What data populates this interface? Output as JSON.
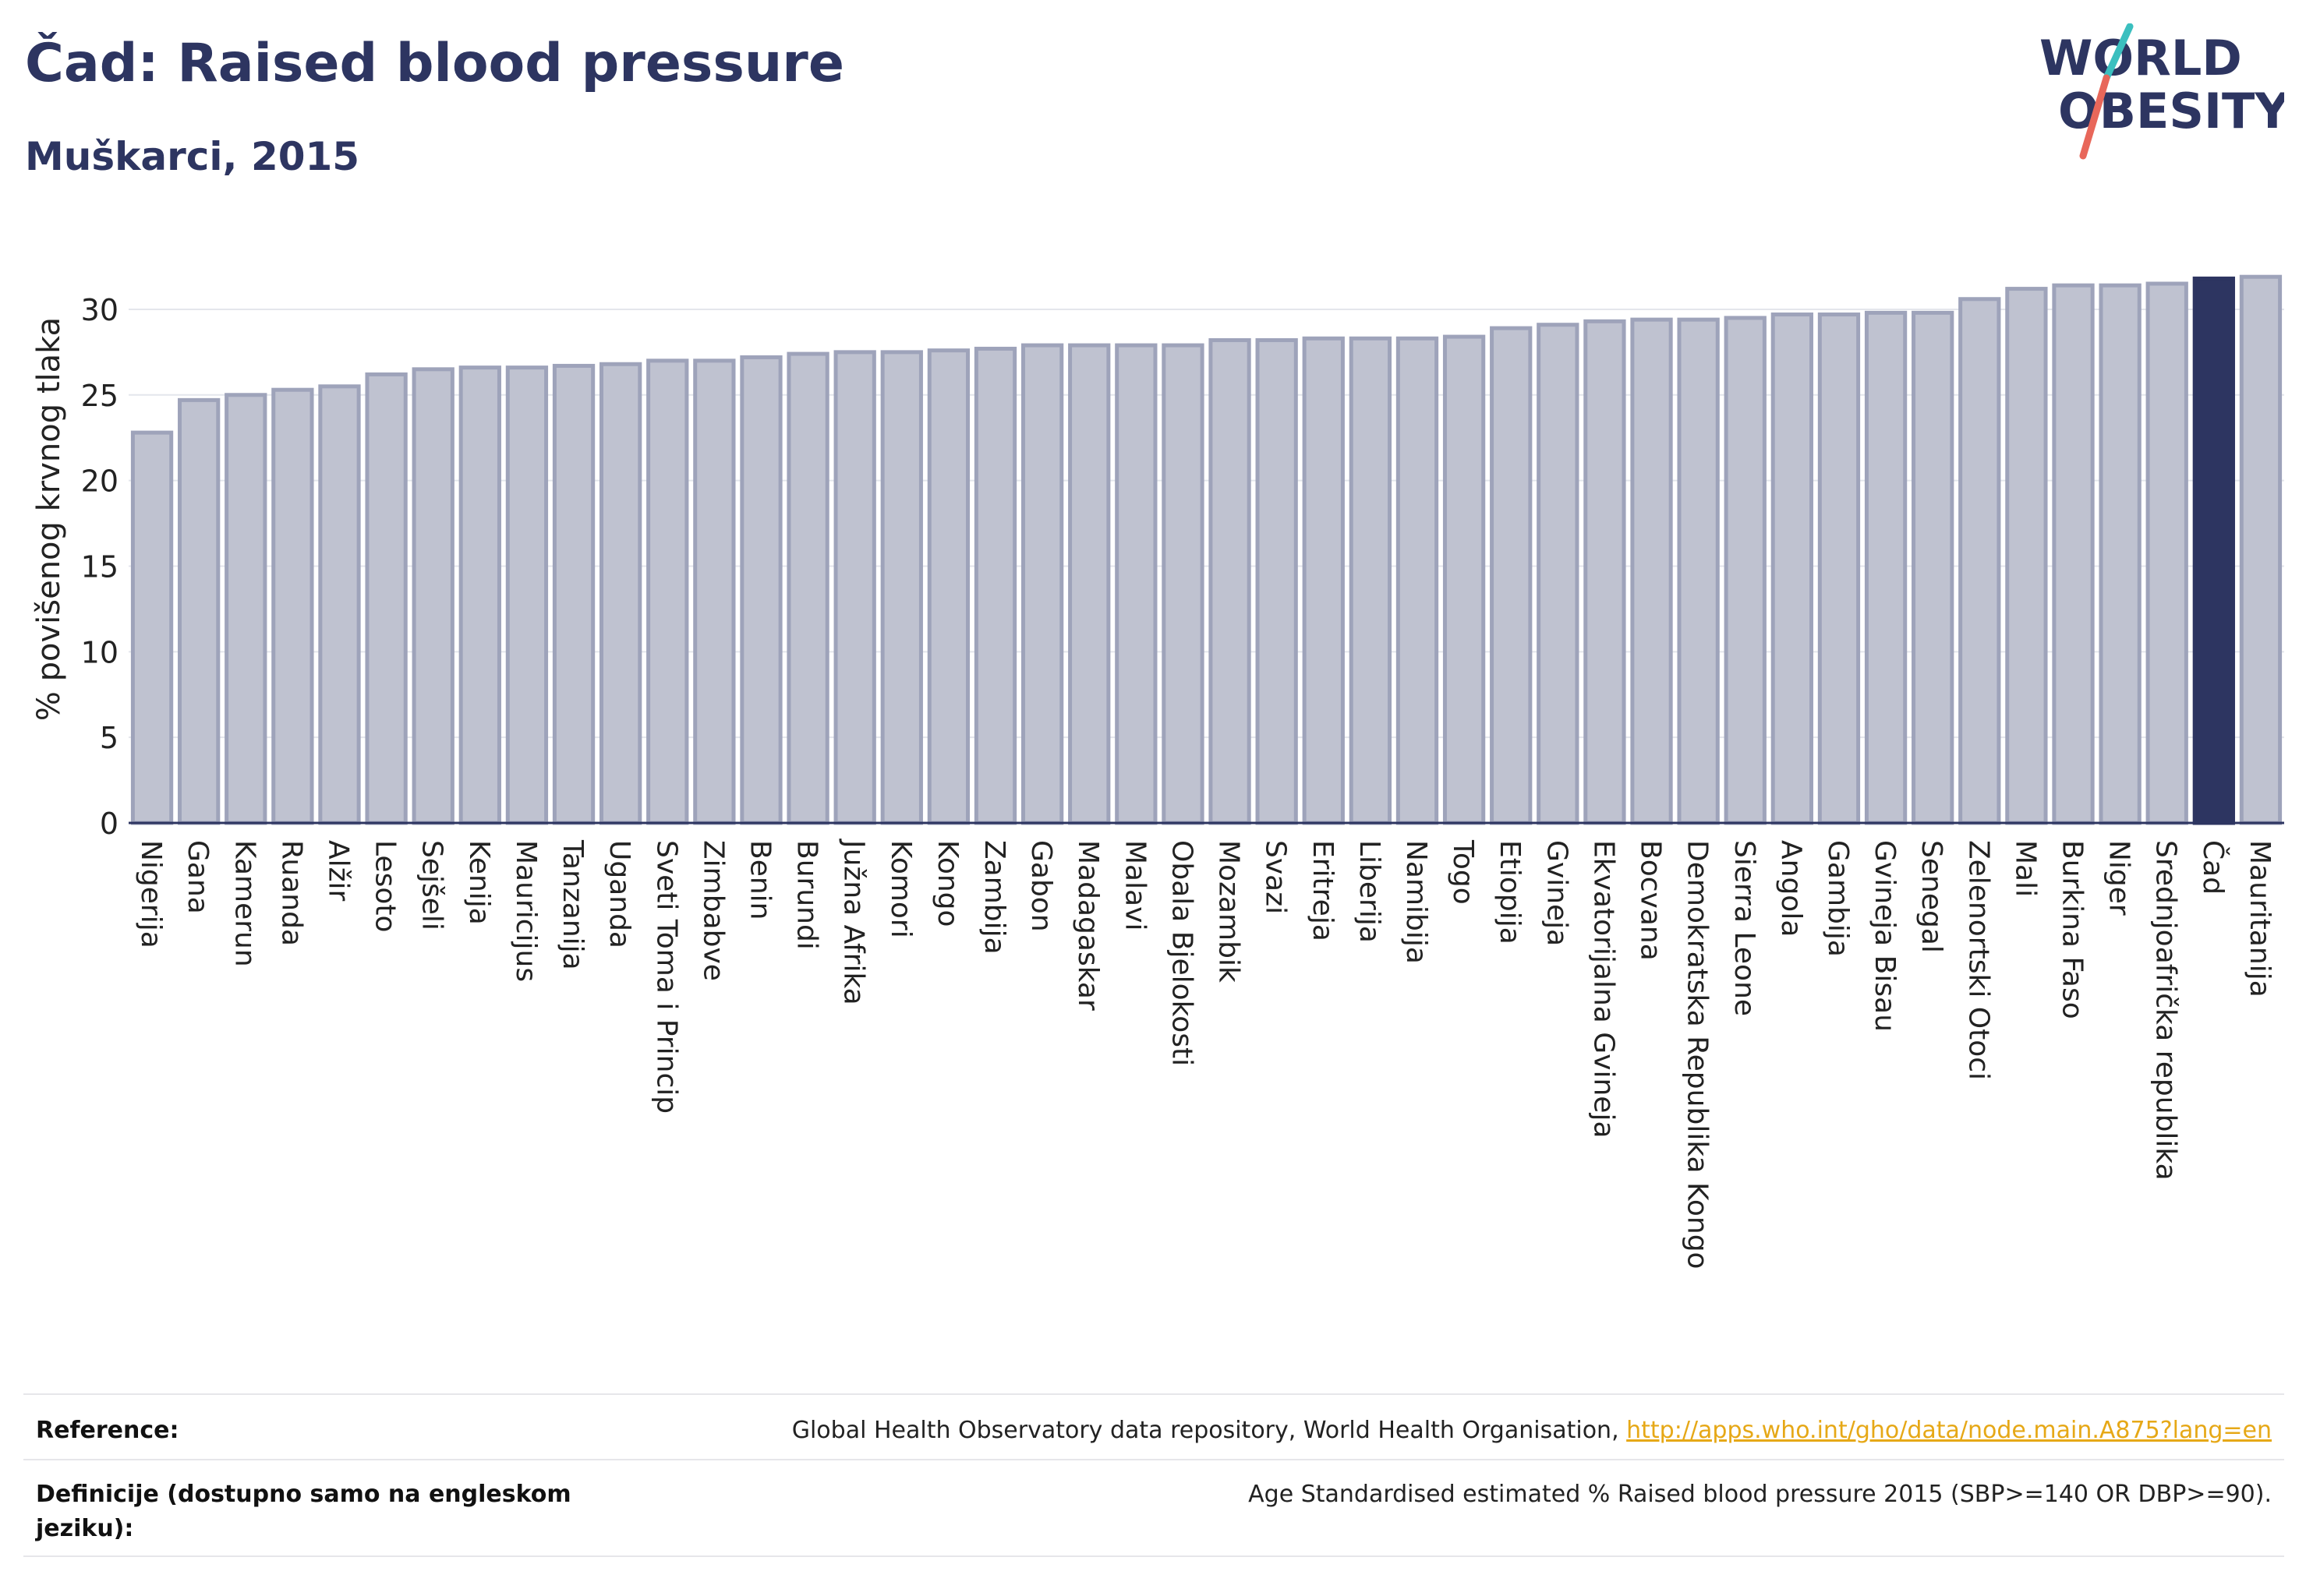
{
  "header": {
    "title": "Čad: Raised blood pressure",
    "subtitle": "Muškarci, 2015"
  },
  "logo": {
    "line1": "WORLD",
    "line2": "OBESITY",
    "colors": {
      "text": "#2d3561",
      "slash_teal": "#3bbfbf",
      "slash_red": "#e8675a"
    }
  },
  "colors": {
    "bar_fill": "#bfc2d0",
    "bar_stroke": "#9ea3ba",
    "highlight": "#2d3561",
    "axis": "#2d3561",
    "grid": "#e4e6ec"
  },
  "chart_data": {
    "type": "bar",
    "ylabel": "% povišenog krvnog tlaka",
    "ylim": [
      0,
      32
    ],
    "yticks": [
      0,
      5,
      10,
      15,
      20,
      25,
      30
    ],
    "grid": true,
    "highlight_category": "Čad",
    "categories": [
      "Nigerija",
      "Gana",
      "Kamerun",
      "Ruanda",
      "Alžir",
      "Lesoto",
      "Sejšeli",
      "Kenija",
      "Mauricijus",
      "Tanzanija",
      "Uganda",
      "Sveti Toma i Princip",
      "Zimbabve",
      "Benin",
      "Burundi",
      "Južna Afrika",
      "Komori",
      "Kongo",
      "Zambija",
      "Gabon",
      "Madagaskar",
      "Malavi",
      "Obala Bjelokosti",
      "Mozambik",
      "Svazi",
      "Eritreja",
      "Liberija",
      "Namibija",
      "Togo",
      "Etiopija",
      "Gvineja",
      "Ekvatorijalna Gvineja",
      "Bocvana",
      "Demokratska Republika Kongo",
      "Sierra Leone",
      "Angola",
      "Gambija",
      "Gvineja Bisau",
      "Senegal",
      "Zelenortski Otoci",
      "Mali",
      "Burkina Faso",
      "Niger",
      "Srednjoafrička republika",
      "Čad",
      "Mauritanija"
    ],
    "values": [
      22.8,
      24.7,
      25.0,
      25.3,
      25.5,
      26.2,
      26.5,
      26.6,
      26.6,
      26.7,
      26.8,
      27.0,
      27.0,
      27.2,
      27.4,
      27.5,
      27.5,
      27.6,
      27.7,
      27.9,
      27.9,
      27.9,
      27.9,
      28.2,
      28.2,
      28.3,
      28.3,
      28.3,
      28.4,
      28.9,
      29.1,
      29.3,
      29.4,
      29.4,
      29.5,
      29.7,
      29.7,
      29.8,
      29.8,
      30.6,
      31.2,
      31.4,
      31.4,
      31.5,
      31.8,
      31.9
    ]
  },
  "footer": {
    "reference_label": "Reference:",
    "reference_text": "Global Health Observatory data repository, World Health Organisation, ",
    "reference_link": "http://apps.who.int/gho/data/node.main.A875?lang=en",
    "definition_label": "Definicije (dostupno samo na engleskom jeziku):",
    "definition_text": "Age Standardised estimated % Raised blood pressure 2015 (SBP>=140 OR DBP>=90)."
  }
}
